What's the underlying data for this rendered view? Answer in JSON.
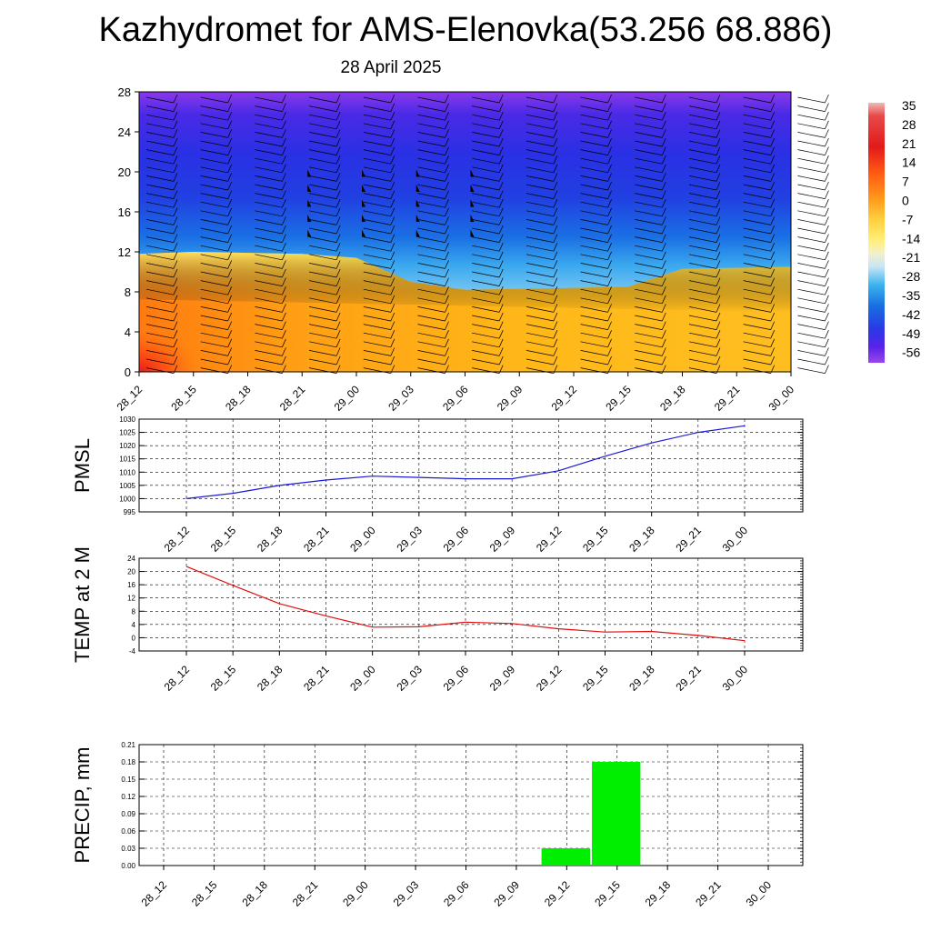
{
  "header": {
    "title": "Kazhydromet for AMS-Elenovka(53.256 68.886)",
    "date": "28 April 2025"
  },
  "time_labels": [
    "28_12",
    "28_15",
    "28_18",
    "28_21",
    "29_00",
    "29_03",
    "29_06",
    "29_09",
    "29_12",
    "29_15",
    "29_18",
    "29_21",
    "30_00"
  ],
  "colors": {
    "pmsl_line": "#1a1ad6",
    "temp_line": "#e01010",
    "precip_bar": "#00ee00"
  },
  "chart_data": [
    {
      "type": "heatmap",
      "title": "",
      "x_categories": [
        "28_12",
        "28_15",
        "28_18",
        "28_21",
        "29_00",
        "29_03",
        "29_06",
        "29_09",
        "29_12",
        "29_15",
        "29_18",
        "29_21",
        "30_00"
      ],
      "y_ticks": [
        0,
        4,
        8,
        12,
        16,
        20,
        24,
        28
      ],
      "ylim": [
        0,
        28
      ],
      "colorbar_labels": [
        "35",
        "28",
        "21",
        "14",
        "7",
        "0",
        "-7",
        "-14",
        "-21",
        "-28",
        "-35",
        "-42",
        "-49",
        "-56"
      ],
      "freezing_level": [
        11.8,
        12.0,
        11.9,
        11.8,
        11.4,
        9.0,
        8.2,
        8.3,
        8.4,
        8.5,
        10.3,
        10.4,
        10.5
      ],
      "wind_barbs": "present"
    },
    {
      "type": "line",
      "ylabel": "PMSL",
      "ylim": [
        995,
        1030
      ],
      "y_ticks": [
        995,
        1000,
        1005,
        1010,
        1015,
        1020,
        1025,
        1030
      ],
      "x": [
        "28_12",
        "28_15",
        "28_18",
        "28_21",
        "29_00",
        "29_03",
        "29_06",
        "29_09",
        "29_12",
        "29_15",
        "29_18",
        "29_21",
        "30_00"
      ],
      "series": [
        {
          "values": [
            1000,
            1002,
            1005,
            1007,
            1008.5,
            1008,
            1007.5,
            1007.5,
            1010.5,
            1016,
            1021,
            1025,
            1027.5
          ]
        }
      ]
    },
    {
      "type": "line",
      "ylabel": "TEMP at 2 M",
      "ylim": [
        -4,
        24
      ],
      "y_ticks": [
        -4,
        0,
        4,
        8,
        12,
        16,
        20,
        24
      ],
      "x": [
        "28_12",
        "28_15",
        "28_18",
        "28_21",
        "29_00",
        "29_03",
        "29_06",
        "29_09",
        "29_12",
        "29_15",
        "29_18",
        "29_21",
        "30_00"
      ],
      "series": [
        {
          "values": [
            21.5,
            15.8,
            10.3,
            6.6,
            3.2,
            3.3,
            4.7,
            4.3,
            2.7,
            1.7,
            1.9,
            0.7,
            -0.9
          ]
        }
      ]
    },
    {
      "type": "bar",
      "ylabel": "PRECIP, mm",
      "ylim": [
        0,
        0.21
      ],
      "y_ticks": [
        "0.00",
        "0.03",
        "0.06",
        "0.09",
        "0.12",
        "0.15",
        "0.18",
        "0.21"
      ],
      "categories": [
        "28_12",
        "28_15",
        "28_18",
        "28_21",
        "29_00",
        "29_03",
        "29_06",
        "29_09",
        "29_12",
        "29_15",
        "29_18",
        "29_21",
        "30_00"
      ],
      "values": [
        0,
        0,
        0,
        0,
        0,
        0,
        0,
        0,
        0.03,
        0.18,
        0,
        0,
        0
      ]
    }
  ]
}
